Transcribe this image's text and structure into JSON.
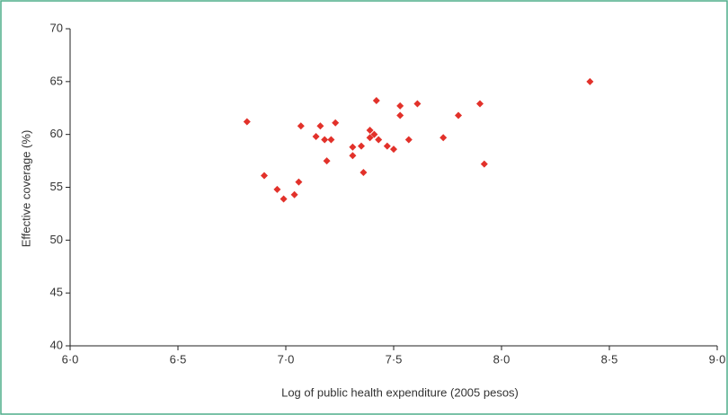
{
  "chart_data": {
    "type": "scatter",
    "xlabel": "Log of public health expenditure (2005 pesos)",
    "ylabel": "Effective coverage (%)",
    "color": "#e2312a",
    "x": [
      6.82,
      6.9,
      6.96,
      6.99,
      7.04,
      7.06,
      7.07,
      7.14,
      7.16,
      7.18,
      7.21,
      7.19,
      7.23,
      7.31,
      7.31,
      7.35,
      7.36,
      7.39,
      7.39,
      7.42,
      7.41,
      7.43,
      7.47,
      7.5,
      7.53,
      7.53,
      7.57,
      7.61,
      7.73,
      7.8,
      7.9,
      7.92,
      8.41
    ],
    "y": [
      61.2,
      56.1,
      54.8,
      53.9,
      54.3,
      55.5,
      60.8,
      59.8,
      60.8,
      59.5,
      59.5,
      57.5,
      61.1,
      58.8,
      58.0,
      58.9,
      56.4,
      59.7,
      60.4,
      63.2,
      60.0,
      59.5,
      58.9,
      58.6,
      61.8,
      62.7,
      59.5,
      62.9,
      59.7,
      61.8,
      62.9,
      57.2,
      65.0
    ],
    "xlim": [
      6.0,
      9.0
    ],
    "xticks": [
      {
        "value": 6.0,
        "label": "6·0"
      },
      {
        "value": 6.5,
        "label": "6·5"
      },
      {
        "value": 7.0,
        "label": "7·0"
      },
      {
        "value": 7.5,
        "label": "7·5"
      },
      {
        "value": 8.0,
        "label": "8·0"
      },
      {
        "value": 8.5,
        "label": "8·5"
      },
      {
        "value": 9.0,
        "label": "9·0"
      }
    ],
    "ylim": [
      40,
      70
    ],
    "yticks": [
      40,
      45,
      50,
      55,
      60,
      65,
      70
    ]
  }
}
